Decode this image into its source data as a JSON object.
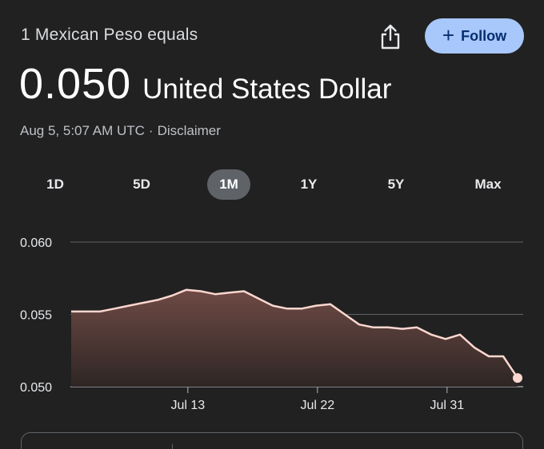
{
  "header": {
    "title": "1 Mexican Peso equals",
    "follow_label": "Follow"
  },
  "quote": {
    "value": "0.050",
    "currency": "United States Dollar"
  },
  "meta": {
    "timestamp": "Aug 5, 5:07 AM UTC",
    "separator": "·",
    "disclaimer": "Disclaimer"
  },
  "ranges": [
    {
      "label": "1D",
      "active": false
    },
    {
      "label": "5D",
      "active": false
    },
    {
      "label": "1M",
      "active": true
    },
    {
      "label": "1Y",
      "active": false
    },
    {
      "label": "5Y",
      "active": false
    },
    {
      "label": "Max",
      "active": false
    }
  ],
  "colors": {
    "background": "#212121",
    "line": "#fcd7cf",
    "area_top": "#6e4a45",
    "follow_bg": "#a8c7fa",
    "active_tab": "#5f6368"
  },
  "icons": {
    "share": "share-icon",
    "follow": "plus-icon"
  },
  "chart_data": {
    "type": "area",
    "ylim": [
      0.0495,
      0.061
    ],
    "yticks": [
      "0.060",
      "0.055",
      "0.050"
    ],
    "ytick_values": [
      0.06,
      0.055,
      0.05
    ],
    "xticks": [
      {
        "label": "Jul 13",
        "x": 8.1
      },
      {
        "label": "Jul 22",
        "x": 17.1
      },
      {
        "label": "Jul 31",
        "x": 26.1
      }
    ],
    "series": [
      {
        "x": [
          0,
          2,
          3,
          4,
          5,
          6,
          7,
          8,
          9,
          10,
          11,
          12,
          13,
          14,
          15,
          16,
          17,
          18,
          19,
          20,
          21,
          22,
          23,
          24,
          25,
          26,
          27,
          28,
          29,
          30,
          31
        ],
        "values": [
          0.0552,
          0.0552,
          0.0554,
          0.0556,
          0.0558,
          0.056,
          0.0563,
          0.0567,
          0.0566,
          0.0564,
          0.0565,
          0.0566,
          0.0561,
          0.0556,
          0.0554,
          0.0554,
          0.0556,
          0.0557,
          0.055,
          0.0543,
          0.0541,
          0.0541,
          0.054,
          0.0541,
          0.0536,
          0.0533,
          0.0536,
          0.0527,
          0.0521,
          0.0521,
          0.0506
        ]
      }
    ]
  }
}
